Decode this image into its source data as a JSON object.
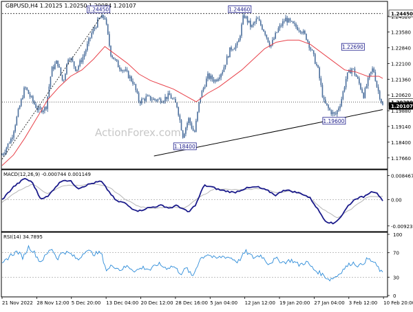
{
  "chart_data": {
    "symbol_header": "GBPUSD,H4  1.20125 1.20250 1.20084 1.20107",
    "watermark": "ActionForex.com",
    "colors": {
      "price": "#4a6e9c",
      "ma": "#e8424a",
      "trendline": "#000000",
      "macd": "#1a1a8a",
      "signal": "#b5b5b5",
      "rsi": "#2a8ad8",
      "level_box": "#1a1a8a"
    },
    "price_panel": {
      "type": "candlestick",
      "ylim": [
        1.172,
        1.247
      ],
      "yticks": [
        "1.24320",
        "1.23580",
        "1.22840",
        "1.22100",
        "1.21360",
        "1.20620",
        "1.19880",
        "1.19140",
        "1.18400",
        "1.17660"
      ],
      "ytick_values": [
        1.2432,
        1.2358,
        1.2284,
        1.221,
        1.2136,
        1.2062,
        1.1988,
        1.1914,
        1.184,
        1.1766
      ],
      "current_price": "1.20107",
      "current_price_value": 1.20107,
      "level_2029": "1.20290",
      "level_2029_value": 1.2029,
      "level_2445": "1.24450",
      "level_2445_value": 1.2445,
      "annotations": [
        {
          "text": "1.24450",
          "value": 1.2445,
          "t": 0.2525
        },
        {
          "text": "1.24460",
          "value": 1.2446,
          "t": 0.6235
        },
        {
          "text": "1.22690",
          "value": 1.2269,
          "t": 0.9211
        },
        {
          "text": "1.18400",
          "value": 1.184,
          "t": 0.4796
        },
        {
          "text": "1.19600",
          "value": 1.196,
          "t": 0.8714
        }
      ],
      "trendline": [
        {
          "t": 0.3991,
          "y": 1.1775
        },
        {
          "t": 1.0,
          "y": 1.1993
        }
      ],
      "dotted_trendline": [
        {
          "t": 0.0,
          "y": 1.176
        },
        {
          "t": 0.2635,
          "y": 1.244
        }
      ],
      "price_path": [
        [
          0.0,
          1.178
        ],
        [
          0.025,
          1.186
        ],
        [
          0.045,
          1.2
        ],
        [
          0.06,
          1.21
        ],
        [
          0.075,
          1.205
        ],
        [
          0.095,
          1.199
        ],
        [
          0.115,
          1.2
        ],
        [
          0.13,
          1.218
        ],
        [
          0.145,
          1.222
        ],
        [
          0.16,
          1.212
        ],
        [
          0.175,
          1.225
        ],
        [
          0.195,
          1.218
        ],
        [
          0.215,
          1.225
        ],
        [
          0.235,
          1.235
        ],
        [
          0.255,
          1.242
        ],
        [
          0.27,
          1.243
        ],
        [
          0.285,
          1.226
        ],
        [
          0.305,
          1.22
        ],
        [
          0.325,
          1.217
        ],
        [
          0.345,
          1.212
        ],
        [
          0.36,
          1.203
        ],
        [
          0.38,
          1.205
        ],
        [
          0.4,
          1.204
        ],
        [
          0.42,
          1.204
        ],
        [
          0.44,
          1.206
        ],
        [
          0.46,
          1.201
        ],
        [
          0.475,
          1.187
        ],
        [
          0.49,
          1.195
        ],
        [
          0.505,
          1.188
        ],
        [
          0.52,
          1.205
        ],
        [
          0.54,
          1.215
        ],
        [
          0.56,
          1.213
        ],
        [
          0.58,
          1.218
        ],
        [
          0.6,
          1.228
        ],
        [
          0.62,
          1.23
        ],
        [
          0.635,
          1.244
        ],
        [
          0.655,
          1.238
        ],
        [
          0.67,
          1.242
        ],
        [
          0.69,
          1.236
        ],
        [
          0.705,
          1.229
        ],
        [
          0.725,
          1.237
        ],
        [
          0.745,
          1.242
        ],
        [
          0.765,
          1.239
        ],
        [
          0.785,
          1.237
        ],
        [
          0.8,
          1.233
        ],
        [
          0.815,
          1.226
        ],
        [
          0.83,
          1.218
        ],
        [
          0.845,
          1.203
        ],
        [
          0.86,
          1.199
        ],
        [
          0.875,
          1.1965
        ],
        [
          0.89,
          1.203
        ],
        [
          0.905,
          1.215
        ],
        [
          0.92,
          1.219
        ],
        [
          0.935,
          1.213
        ],
        [
          0.95,
          1.206
        ],
        [
          0.965,
          1.215
        ],
        [
          0.975,
          1.219
        ],
        [
          0.985,
          1.21
        ],
        [
          1.0,
          1.2011
        ]
      ],
      "ma_path": [
        [
          0.0,
          1.173
        ],
        [
          0.03,
          1.178
        ],
        [
          0.06,
          1.186
        ],
        [
          0.09,
          1.195
        ],
        [
          0.12,
          1.204
        ],
        [
          0.15,
          1.21
        ],
        [
          0.18,
          1.215
        ],
        [
          0.21,
          1.218
        ],
        [
          0.24,
          1.223
        ],
        [
          0.27,
          1.229
        ],
        [
          0.3,
          1.225
        ],
        [
          0.33,
          1.221
        ],
        [
          0.36,
          1.216
        ],
        [
          0.39,
          1.213
        ],
        [
          0.42,
          1.211
        ],
        [
          0.45,
          1.209
        ],
        [
          0.48,
          1.206
        ],
        [
          0.51,
          1.203
        ],
        [
          0.54,
          1.207
        ],
        [
          0.57,
          1.21
        ],
        [
          0.6,
          1.214
        ],
        [
          0.63,
          1.218
        ],
        [
          0.66,
          1.223
        ],
        [
          0.69,
          1.228
        ],
        [
          0.72,
          1.231
        ],
        [
          0.75,
          1.232
        ],
        [
          0.78,
          1.232
        ],
        [
          0.81,
          1.23
        ],
        [
          0.84,
          1.226
        ],
        [
          0.87,
          1.222
        ],
        [
          0.9,
          1.218
        ],
        [
          0.93,
          1.217
        ],
        [
          0.96,
          1.215
        ],
        [
          0.99,
          1.215
        ],
        [
          1.0,
          1.214
        ]
      ]
    },
    "macd_panel": {
      "label": "MACD(12,26,9) -0.000744 0.001149",
      "ylim": [
        -0.0105,
        0.0098
      ],
      "yticks": [
        "0.008467",
        "0.00",
        "-0.009233"
      ],
      "ytick_values": [
        0.008467,
        0.0,
        -0.009233
      ],
      "macd_path": [
        [
          0.0,
          0.0
        ],
        [
          0.03,
          0.0045
        ],
        [
          0.06,
          0.0075
        ],
        [
          0.08,
          0.006
        ],
        [
          0.1,
          0.0005
        ],
        [
          0.12,
          0.001
        ],
        [
          0.14,
          0.0045
        ],
        [
          0.16,
          0.007
        ],
        [
          0.18,
          0.0065
        ],
        [
          0.2,
          0.004
        ],
        [
          0.23,
          0.0055
        ],
        [
          0.26,
          0.0065
        ],
        [
          0.28,
          0.003
        ],
        [
          0.3,
          -0.0005
        ],
        [
          0.32,
          -0.001
        ],
        [
          0.34,
          -0.003
        ],
        [
          0.36,
          -0.004
        ],
        [
          0.38,
          -0.003
        ],
        [
          0.4,
          -0.0025
        ],
        [
          0.42,
          -0.002
        ],
        [
          0.44,
          -0.003
        ],
        [
          0.46,
          -0.002
        ],
        [
          0.49,
          -0.0045
        ],
        [
          0.51,
          -0.0015
        ],
        [
          0.53,
          0.005
        ],
        [
          0.55,
          0.0045
        ],
        [
          0.57,
          0.0035
        ],
        [
          0.59,
          0.003
        ],
        [
          0.61,
          0.0025
        ],
        [
          0.64,
          0.004
        ],
        [
          0.67,
          0.0045
        ],
        [
          0.7,
          0.003
        ],
        [
          0.72,
          0.0015
        ],
        [
          0.74,
          0.0035
        ],
        [
          0.76,
          0.003
        ],
        [
          0.79,
          0.002
        ],
        [
          0.81,
          0.0005
        ],
        [
          0.83,
          -0.0035
        ],
        [
          0.85,
          -0.0075
        ],
        [
          0.87,
          -0.0085
        ],
        [
          0.89,
          -0.006
        ],
        [
          0.91,
          -0.002
        ],
        [
          0.93,
          0.0005
        ],
        [
          0.95,
          0.001
        ],
        [
          0.97,
          0.003
        ],
        [
          0.985,
          0.0025
        ],
        [
          1.0,
          -0.0007
        ]
      ],
      "signal_path": [
        [
          0.0,
          -0.001
        ],
        [
          0.04,
          0.003
        ],
        [
          0.08,
          0.0055
        ],
        [
          0.12,
          0.002
        ],
        [
          0.16,
          0.005
        ],
        [
          0.2,
          0.005
        ],
        [
          0.24,
          0.0055
        ],
        [
          0.28,
          0.0045
        ],
        [
          0.32,
          0.0005
        ],
        [
          0.36,
          -0.0025
        ],
        [
          0.4,
          -0.003
        ],
        [
          0.44,
          -0.0025
        ],
        [
          0.48,
          -0.003
        ],
        [
          0.52,
          0.001
        ],
        [
          0.56,
          0.004
        ],
        [
          0.6,
          0.0035
        ],
        [
          0.64,
          0.0035
        ],
        [
          0.68,
          0.004
        ],
        [
          0.72,
          0.0025
        ],
        [
          0.76,
          0.003
        ],
        [
          0.8,
          0.0015
        ],
        [
          0.84,
          -0.003
        ],
        [
          0.88,
          -0.0065
        ],
        [
          0.92,
          -0.003
        ],
        [
          0.96,
          0.001
        ],
        [
          1.0,
          0.0011
        ]
      ]
    },
    "rsi_panel": {
      "label": "RSI(14) 34.7895",
      "ylim": [
        0,
        100
      ],
      "yticks": [
        "100",
        "70",
        "30",
        "0"
      ],
      "ytick_values": [
        100,
        70,
        30,
        0
      ],
      "rsi_path": [
        [
          0.0,
          50
        ],
        [
          0.02,
          65
        ],
        [
          0.04,
          72
        ],
        [
          0.055,
          62
        ],
        [
          0.07,
          80
        ],
        [
          0.085,
          70
        ],
        [
          0.1,
          55
        ],
        [
          0.115,
          65
        ],
        [
          0.13,
          78
        ],
        [
          0.145,
          60
        ],
        [
          0.16,
          72
        ],
        [
          0.18,
          68
        ],
        [
          0.2,
          58
        ],
        [
          0.22,
          75
        ],
        [
          0.24,
          68
        ],
        [
          0.26,
          70
        ],
        [
          0.275,
          40
        ],
        [
          0.29,
          50
        ],
        [
          0.31,
          42
        ],
        [
          0.33,
          48
        ],
        [
          0.35,
          40
        ],
        [
          0.37,
          46
        ],
        [
          0.39,
          42
        ],
        [
          0.41,
          52
        ],
        [
          0.43,
          45
        ],
        [
          0.45,
          48
        ],
        [
          0.47,
          36
        ],
        [
          0.485,
          45
        ],
        [
          0.5,
          30
        ],
        [
          0.52,
          60
        ],
        [
          0.54,
          68
        ],
        [
          0.56,
          60
        ],
        [
          0.58,
          64
        ],
        [
          0.6,
          62
        ],
        [
          0.62,
          55
        ],
        [
          0.64,
          72
        ],
        [
          0.66,
          62
        ],
        [
          0.68,
          66
        ],
        [
          0.7,
          52
        ],
        [
          0.72,
          60
        ],
        [
          0.74,
          54
        ],
        [
          0.76,
          58
        ],
        [
          0.78,
          50
        ],
        [
          0.8,
          55
        ],
        [
          0.82,
          42
        ],
        [
          0.84,
          35
        ],
        [
          0.86,
          26
        ],
        [
          0.88,
          32
        ],
        [
          0.9,
          45
        ],
        [
          0.92,
          54
        ],
        [
          0.94,
          48
        ],
        [
          0.96,
          60
        ],
        [
          0.975,
          55
        ],
        [
          0.985,
          48
        ],
        [
          1.0,
          35
        ]
      ]
    },
    "x_axis": {
      "labels": [
        "21 Nov 2022",
        "28 Nov 12:00",
        "5 Dec 20:00",
        "13 Dec 04:00",
        "20 Dec 12:00",
        "28 Dec 16:00",
        "5 Jan 04:00",
        "12 Jan 12:00",
        "19 Jan 20:00",
        "27 Jan 04:00",
        "3 Feb 12:00",
        "10 Feb 20:00"
      ],
      "positions": [
        0.0,
        0.0911,
        0.1822,
        0.2733,
        0.3644,
        0.4555,
        0.5466,
        0.6377,
        0.7288,
        0.8199,
        0.911,
        1.0021
      ]
    }
  }
}
